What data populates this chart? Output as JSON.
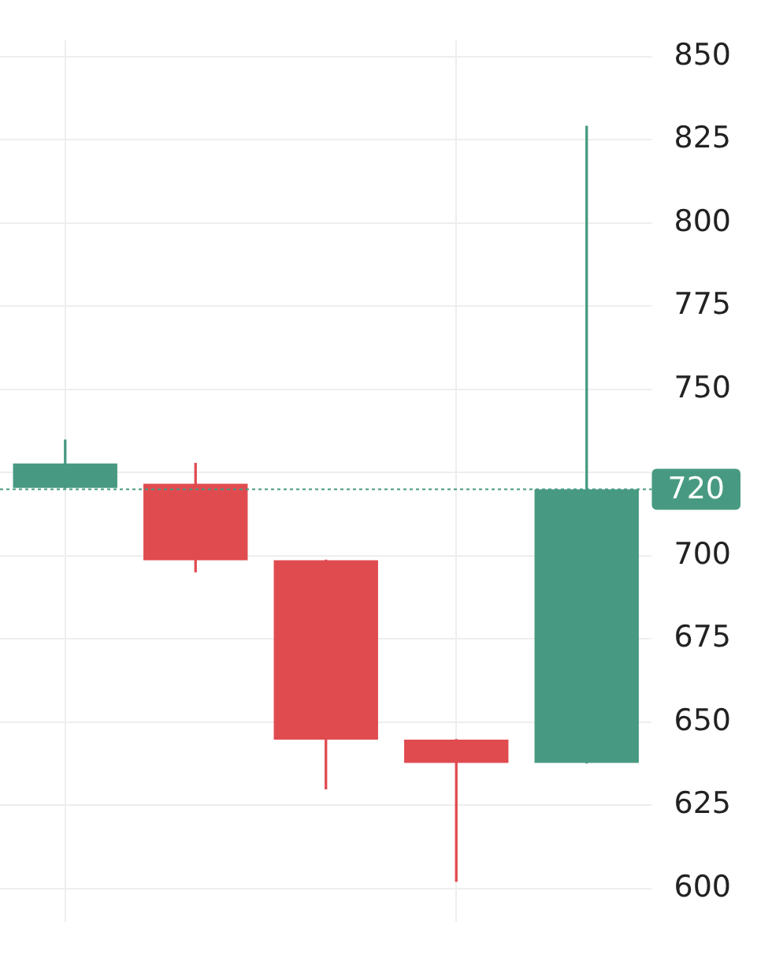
{
  "chart_data": {
    "type": "candlestick",
    "categories": [
      null,
      null,
      null,
      null,
      null
    ],
    "ohlc": [
      [
        720.4,
        734.8,
        720.4,
        727.8
      ],
      [
        721.7,
        727.8,
        695.2,
        698.7
      ],
      [
        698.7,
        698.7,
        630,
        644.8
      ],
      [
        644.8,
        644.8,
        602.2,
        637.8
      ],
      [
        637.8,
        829.1,
        637.8,
        720
      ]
    ],
    "colors": [
      "#479a81",
      "#e04b50",
      "#e04b50",
      "#e04b50",
      "#479a81"
    ],
    "ylim": [
      590,
      855
    ],
    "yticks": [
      600,
      625,
      650,
      675,
      700,
      {
        "value": 725,
        "label": null
      },
      750,
      775,
      800,
      825,
      850
    ],
    "grid": true,
    "tick_labels": "y",
    "ref_lines": [
      {
        "axis": "y",
        "value": 720,
        "label": "720",
        "color": "#479a81",
        "line_style": "dotted"
      }
    ]
  }
}
